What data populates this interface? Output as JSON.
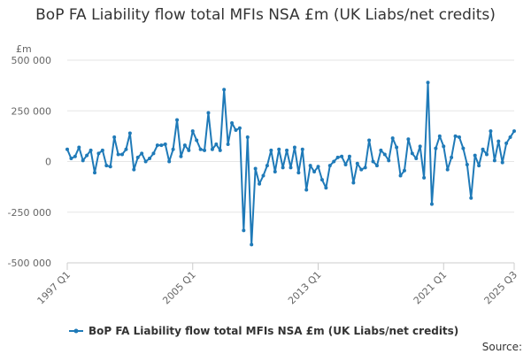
{
  "chart_data": {
    "type": "line",
    "title": "BoP FA Liability flow total MFIs NSA £m (UK Liabs/net credits)",
    "ylabel": "£m",
    "ylim": [
      -500000,
      500000
    ],
    "y_ticks": [
      500000,
      250000,
      0,
      -250000,
      -500000
    ],
    "y_tick_labels": [
      "500 000",
      "250 000",
      "0",
      "-250 000",
      "-500 000"
    ],
    "x_tick_labels": [
      "1997 Q1",
      "2005 Q1",
      "2013 Q1",
      "2021 Q1",
      "2025 Q3"
    ],
    "x_tick_indices": [
      0,
      32,
      64,
      96,
      114
    ],
    "grid": true,
    "legend_position": "bottom",
    "source_label": "Source:",
    "series": [
      {
        "name": "BoP FA Liability flow total MFIs NSA £m (UK Liabs/net credits)",
        "color": "#1f7ab8",
        "start": "1997 Q1",
        "values": [
          60000,
          15000,
          25000,
          70000,
          5000,
          30000,
          55000,
          -55000,
          40000,
          55000,
          -20000,
          -25000,
          120000,
          35000,
          35000,
          60000,
          140000,
          -40000,
          20000,
          40000,
          0,
          15000,
          40000,
          80000,
          80000,
          85000,
          0,
          60000,
          205000,
          25000,
          80000,
          55000,
          150000,
          105000,
          60000,
          55000,
          240000,
          60000,
          85000,
          55000,
          355000,
          85000,
          190000,
          155000,
          165000,
          -340000,
          120000,
          -410000,
          -35000,
          -110000,
          -70000,
          -20000,
          55000,
          -50000,
          60000,
          -30000,
          55000,
          -30000,
          70000,
          -55000,
          60000,
          -140000,
          -20000,
          -50000,
          -25000,
          -90000,
          -130000,
          -20000,
          0,
          20000,
          25000,
          -15000,
          25000,
          -105000,
          -10000,
          -40000,
          -30000,
          105000,
          0,
          -20000,
          55000,
          35000,
          5000,
          115000,
          70000,
          -70000,
          -45000,
          110000,
          40000,
          15000,
          75000,
          -80000,
          390000,
          -210000,
          65000,
          125000,
          75000,
          -40000,
          20000,
          125000,
          120000,
          65000,
          -15000,
          -180000,
          30000,
          -20000,
          60000,
          35000,
          150000,
          5000,
          100000,
          -5000,
          90000,
          120000,
          150000
        ]
      }
    ]
  }
}
